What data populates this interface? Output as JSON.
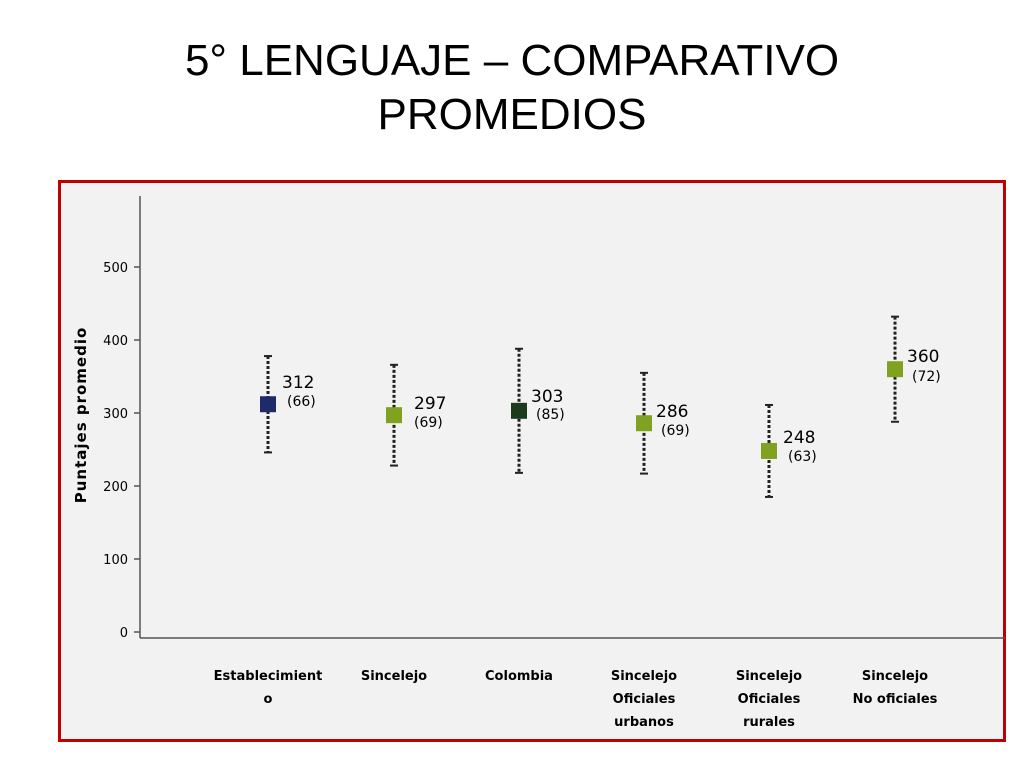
{
  "slide": {
    "title_line1": "5° LENGUAJE – COMPARATIVO",
    "title_line2": "PROMEDIOS"
  },
  "chart_data": {
    "type": "scatter",
    "ylabel": "Puntajes promedio",
    "ylim": [
      0,
      500
    ],
    "yticks": [
      0,
      100,
      200,
      300,
      400,
      500
    ],
    "grid": false,
    "categories": [
      [
        "Establecimient",
        "o"
      ],
      [
        "Sincelejo"
      ],
      [
        "Colombia"
      ],
      [
        "Sincelejo",
        "Oficiales",
        "urbanos"
      ],
      [
        "Sincelejo",
        "Oficiales",
        "rurales"
      ],
      [
        "Sincelejo",
        "No oficiales"
      ]
    ],
    "points": [
      {
        "mean": 312,
        "sd": 66,
        "mean_label": "312",
        "sd_label": "(66)",
        "color": "#1f2a6b"
      },
      {
        "mean": 297,
        "sd": 69,
        "mean_label": "297",
        "sd_label": "(69)",
        "color": "#7fa320"
      },
      {
        "mean": 303,
        "sd": 85,
        "mean_label": "303",
        "sd_label": "(85)",
        "color": "#1c3a1c"
      },
      {
        "mean": 286,
        "sd": 69,
        "mean_label": "286",
        "sd_label": "(69)",
        "color": "#7fa320"
      },
      {
        "mean": 248,
        "sd": 63,
        "mean_label": "248",
        "sd_label": "(63)",
        "color": "#7fa320"
      },
      {
        "mean": 360,
        "sd": 72,
        "mean_label": "360",
        "sd_label": "(72)",
        "color": "#7fa320"
      }
    ]
  }
}
